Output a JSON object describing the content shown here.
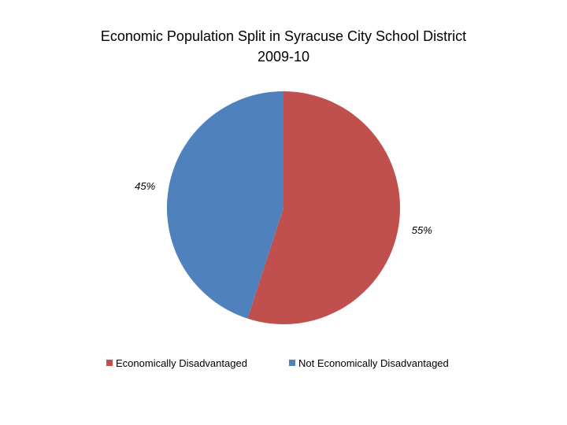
{
  "chart_data": {
    "type": "pie",
    "title": "Economic Population Split in Syracuse City School District",
    "subtitle": "2009-10",
    "slices": [
      {
        "name": "Economically Disadvantaged",
        "value": 55,
        "label": "55%",
        "color": "#C0504D"
      },
      {
        "name": "Not Economically Disadvantaged",
        "value": 45,
        "label": "45%",
        "color": "#4F81BD"
      }
    ],
    "start_angle_deg": 0,
    "direction": "clockwise",
    "legend": {
      "position": "bottom"
    }
  }
}
